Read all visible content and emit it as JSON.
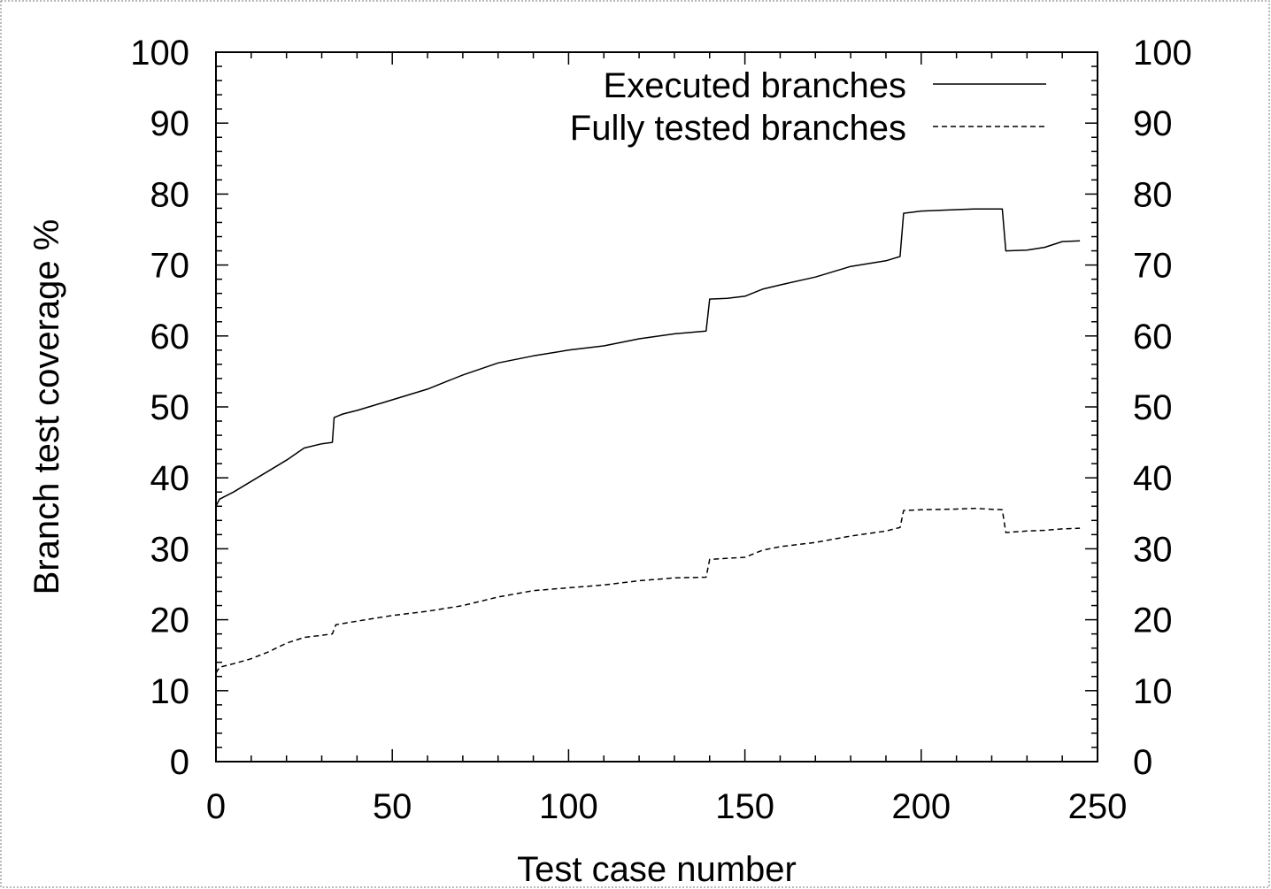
{
  "chart_data": {
    "type": "line",
    "title": "",
    "xlabel": "Test case number",
    "ylabel": "Branch test coverage %",
    "xlim": [
      0,
      250
    ],
    "ylim": [
      0,
      100
    ],
    "x_ticks": [
      "0",
      "50",
      "100",
      "150",
      "200",
      "250"
    ],
    "x_tick_values": [
      0,
      50,
      100,
      150,
      200,
      250
    ],
    "y_ticks": [
      "0",
      "10",
      "20",
      "30",
      "40",
      "50",
      "60",
      "70",
      "80",
      "90",
      "100"
    ],
    "y_tick_values": [
      0,
      10,
      20,
      30,
      40,
      50,
      60,
      70,
      80,
      90,
      100
    ],
    "right_axis_mirrored": true,
    "grid": false,
    "legend_position": "top-right",
    "series": [
      {
        "name": "Executed branches",
        "style": "solid",
        "color": "#000000",
        "points": [
          [
            0,
            36
          ],
          [
            1,
            37
          ],
          [
            5,
            38
          ],
          [
            10,
            39.5
          ],
          [
            15,
            41
          ],
          [
            20,
            42.5
          ],
          [
            25,
            44.2
          ],
          [
            30,
            44.8
          ],
          [
            33,
            45
          ],
          [
            33.5,
            48.5
          ],
          [
            36,
            49
          ],
          [
            40,
            49.5
          ],
          [
            50,
            51
          ],
          [
            60,
            52.5
          ],
          [
            70,
            54.5
          ],
          [
            80,
            56.2
          ],
          [
            90,
            57.2
          ],
          [
            100,
            58
          ],
          [
            110,
            58.6
          ],
          [
            120,
            59.6
          ],
          [
            130,
            60.3
          ],
          [
            139,
            60.7
          ],
          [
            140,
            65.2
          ],
          [
            145,
            65.3
          ],
          [
            150,
            65.6
          ],
          [
            155,
            66.6
          ],
          [
            160,
            67.2
          ],
          [
            170,
            68.3
          ],
          [
            180,
            69.8
          ],
          [
            190,
            70.6
          ],
          [
            194,
            71.2
          ],
          [
            195,
            77.3
          ],
          [
            200,
            77.6
          ],
          [
            210,
            77.8
          ],
          [
            215,
            77.9
          ],
          [
            223,
            77.9
          ],
          [
            224,
            72
          ],
          [
            230,
            72.1
          ],
          [
            235,
            72.5
          ],
          [
            240,
            73.3
          ],
          [
            245,
            73.4
          ]
        ]
      },
      {
        "name": "Fully tested branches",
        "style": "dashed",
        "color": "#000000",
        "points": [
          [
            0,
            12.5
          ],
          [
            1,
            13.3
          ],
          [
            5,
            13.8
          ],
          [
            10,
            14.5
          ],
          [
            15,
            15.5
          ],
          [
            20,
            16.7
          ],
          [
            25,
            17.5
          ],
          [
            30,
            17.8
          ],
          [
            33,
            18
          ],
          [
            34,
            19.3
          ],
          [
            40,
            19.8
          ],
          [
            50,
            20.6
          ],
          [
            60,
            21.2
          ],
          [
            70,
            22
          ],
          [
            80,
            23.2
          ],
          [
            90,
            24.1
          ],
          [
            100,
            24.5
          ],
          [
            110,
            24.9
          ],
          [
            120,
            25.5
          ],
          [
            130,
            25.9
          ],
          [
            139,
            26
          ],
          [
            140,
            28.5
          ],
          [
            150,
            28.8
          ],
          [
            155,
            29.8
          ],
          [
            160,
            30.3
          ],
          [
            170,
            30.9
          ],
          [
            180,
            31.8
          ],
          [
            190,
            32.5
          ],
          [
            194,
            33
          ],
          [
            195,
            35.4
          ],
          [
            200,
            35.5
          ],
          [
            210,
            35.6
          ],
          [
            215,
            35.7
          ],
          [
            223,
            35.5
          ],
          [
            224,
            32.3
          ],
          [
            230,
            32.5
          ],
          [
            235,
            32.6
          ],
          [
            240,
            32.8
          ],
          [
            245,
            32.9
          ]
        ]
      }
    ]
  }
}
